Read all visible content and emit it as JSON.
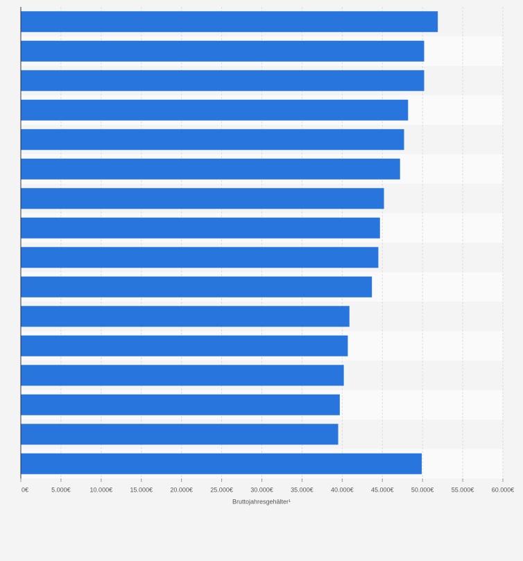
{
  "chart_data": {
    "type": "bar",
    "orientation": "horizontal",
    "x_label": "Bruttojahresgehälter¹",
    "categories": [
      null,
      null,
      null,
      null,
      null,
      null,
      null,
      null,
      null,
      null,
      null,
      null,
      null,
      null,
      null,
      null
    ],
    "values": [
      51900,
      50200,
      50200,
      48200,
      47700,
      47200,
      45200,
      44700,
      44500,
      43700,
      40900,
      40700,
      40200,
      39700,
      39500,
      49900
    ],
    "color": "#2876dd",
    "xlim": [
      0,
      60000
    ],
    "xticks": [
      {
        "value": 0,
        "label": "0€"
      },
      {
        "value": 5000,
        "label": "5.000€"
      },
      {
        "value": 10000,
        "label": "10.000€"
      },
      {
        "value": 15000,
        "label": "15.000€"
      },
      {
        "value": 20000,
        "label": "20.000€"
      },
      {
        "value": 25000,
        "label": "25.000€"
      },
      {
        "value": 30000,
        "label": "30.000€"
      },
      {
        "value": 35000,
        "label": "35.000€"
      },
      {
        "value": 40000,
        "label": "40.000€"
      },
      {
        "value": 45000,
        "label": "45.000€"
      },
      {
        "value": 50000,
        "label": "50.000€"
      },
      {
        "value": 55000,
        "label": "55.000€"
      },
      {
        "value": 60000,
        "label": "60.000€"
      }
    ],
    "grid": true
  }
}
